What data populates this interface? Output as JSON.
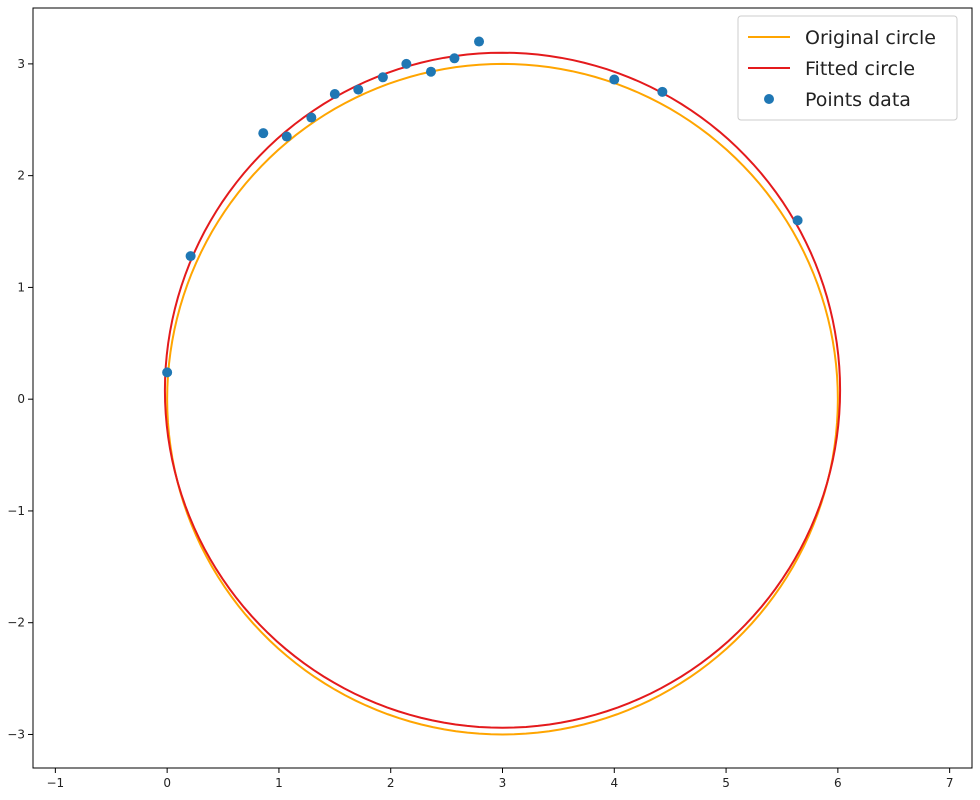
{
  "chart_data": {
    "type": "scatter",
    "title": "",
    "xlabel": "",
    "ylabel": "",
    "xlim": [
      -1.2,
      7.2
    ],
    "ylim": [
      -3.3,
      3.5
    ],
    "xticks": [
      -1,
      0,
      1,
      2,
      3,
      4,
      5,
      6,
      7
    ],
    "yticks": [
      -3,
      -2,
      -1,
      0,
      1,
      2,
      3
    ],
    "xtick_labels": [
      "−1",
      "0",
      "1",
      "2",
      "3",
      "4",
      "5",
      "6",
      "7"
    ],
    "ytick_labels": [
      "−3",
      "−2",
      "−1",
      "0",
      "1",
      "2",
      "3"
    ],
    "grid": false,
    "legend_position": "top-right",
    "series": [
      {
        "name": "Original circle",
        "kind": "circle",
        "color": "#ffa500",
        "center": [
          3.0,
          0.0
        ],
        "radius": 3.0
      },
      {
        "name": "Fitted circle",
        "kind": "circle",
        "color": "#e41a1c",
        "center": [
          3.0,
          0.08
        ],
        "radius": 3.02
      },
      {
        "name": "Points data",
        "kind": "scatter",
        "color": "#1f77b4",
        "x": [
          0.0,
          0.21,
          0.86,
          1.07,
          1.29,
          1.5,
          1.71,
          1.93,
          2.14,
          2.36,
          2.57,
          2.79,
          4.0,
          4.43,
          5.64
        ],
        "y": [
          0.24,
          1.28,
          2.38,
          2.35,
          2.52,
          2.73,
          2.77,
          2.88,
          3.0,
          2.93,
          3.05,
          3.2,
          2.86,
          2.75,
          1.6
        ]
      }
    ]
  }
}
